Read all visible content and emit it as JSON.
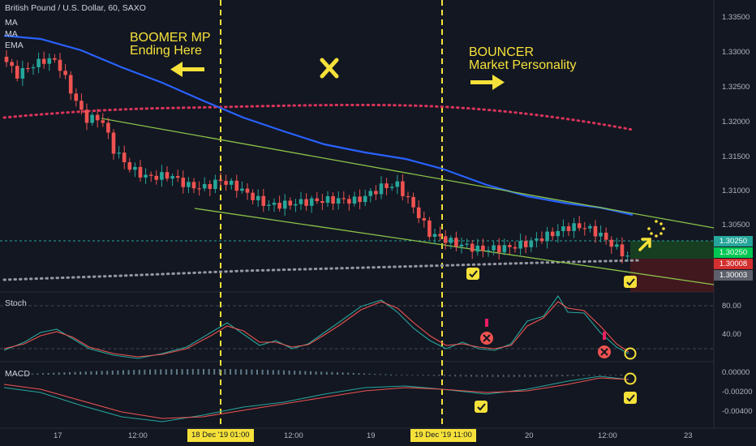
{
  "header": {
    "symbol": "British Pound / U.S. Dollar, 60, SAXO",
    "studies": [
      "MA",
      "MA",
      "EMA"
    ]
  },
  "annotations": {
    "boomer_line1": "BOOMER MP",
    "boomer_line2": "Ending Here",
    "bouncer_line1": "BOUNCER",
    "bouncer_line2": "Market Personality"
  },
  "price_tags": {
    "upper_green": "1.30250",
    "lower_green": "1.30250",
    "red": "1.30008",
    "gray": "1.30003"
  },
  "panes": {
    "stoch": "Stoch",
    "macd": "MACD"
  },
  "price_axis": [
    "1.33500",
    "1.33000",
    "1.32500",
    "1.32000",
    "1.31500",
    "1.31000",
    "1.30500"
  ],
  "stoch_axis": [
    "80.00",
    "40.00"
  ],
  "macd_axis": [
    "0.00000",
    "-0.00200",
    "-0.00400"
  ],
  "time_axis": [
    "17",
    "12:00",
    "12:00",
    "19",
    "12:00",
    "20",
    "12:00",
    "23"
  ],
  "time_highlights": [
    "18 Dec '19   01:00",
    "19 Dec '19   11:00"
  ],
  "colors": {
    "background": "#131722",
    "accent": "#f5e13a",
    "bull": "#26a69a",
    "bear": "#ef5350",
    "ma_blue": "#2962ff",
    "channel": "#8bc34a"
  }
}
